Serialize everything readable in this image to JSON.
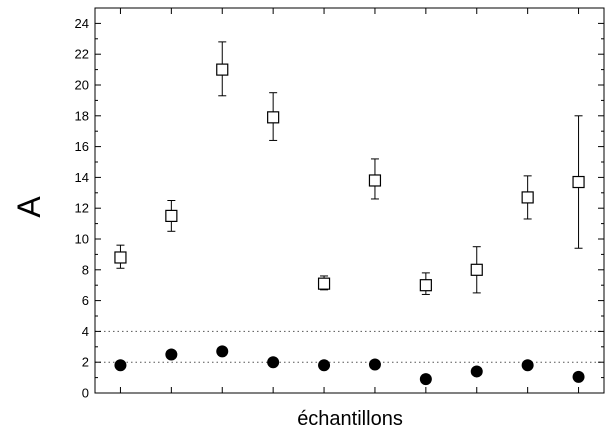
{
  "chart_data": {
    "type": "scatter",
    "xlabel": "échantillons",
    "ylabel": "A",
    "xlim": [
      0.5,
      10.5
    ],
    "ylim": [
      0,
      25
    ],
    "yticks": [
      0,
      2,
      4,
      6,
      8,
      10,
      12,
      14,
      16,
      18,
      20,
      22,
      24
    ],
    "x": [
      1,
      2,
      3,
      4,
      5,
      6,
      7,
      8,
      9,
      10
    ],
    "grid": false,
    "reference_lines": [
      2,
      4
    ],
    "series": [
      {
        "marker": "open-square",
        "color": "#000000",
        "values": [
          8.8,
          11.5,
          21.0,
          17.9,
          7.1,
          13.8,
          7.0,
          8.0,
          12.7,
          13.7
        ],
        "error_upper": [
          9.6,
          12.5,
          22.8,
          19.5,
          7.6,
          15.2,
          7.8,
          9.5,
          14.1,
          18.0
        ],
        "error_lower": [
          8.1,
          10.5,
          19.3,
          16.4,
          6.7,
          12.6,
          6.4,
          6.5,
          11.3,
          9.4
        ]
      },
      {
        "marker": "filled-circle",
        "color": "#000000",
        "values": [
          1.8,
          2.5,
          2.7,
          2.0,
          1.8,
          1.85,
          0.9,
          1.4,
          1.8,
          1.05
        ]
      }
    ]
  }
}
